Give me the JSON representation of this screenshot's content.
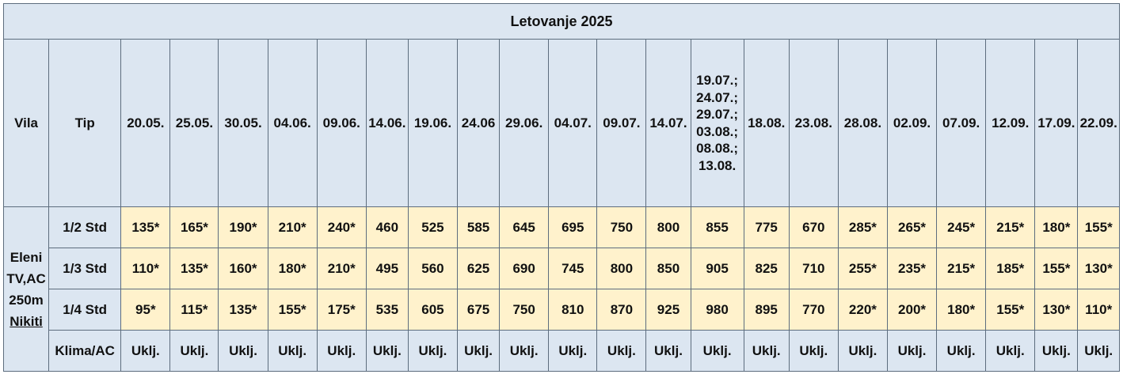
{
  "title": "Letovanje 2025",
  "headers": {
    "vila": "Vila",
    "tip": "Tip",
    "dates": [
      "20.05.",
      "25.05.",
      "30.05.",
      "04.06.",
      "09.06.",
      "14.06.",
      "19.06.",
      "24.06",
      "29.06.",
      "04.07.",
      "09.07.",
      "14.07."
    ],
    "multi_date": [
      "19.07.;",
      "24.07.;",
      "29.07.;",
      "03.08.;",
      "08.08.;",
      "13.08."
    ],
    "dates_after": [
      "18.08.",
      "23.08.",
      "28.08.",
      "02.09.",
      "07.09.",
      "12.09.",
      "17.09.",
      "22.09."
    ]
  },
  "vila": {
    "name": "Eleni",
    "features": "TV,AC",
    "distance": "250m",
    "location": "Nikiti"
  },
  "rows": [
    {
      "tip": "1/2 Std",
      "prices": [
        "135*",
        "165*",
        "190*",
        "210*",
        "240*",
        "460",
        "525",
        "585",
        "645",
        "695",
        "750",
        "800",
        "855",
        "775",
        "670",
        "285*",
        "265*",
        "245*",
        "215*",
        "180*",
        "155*"
      ]
    },
    {
      "tip": "1/3 Std",
      "prices": [
        "110*",
        "135*",
        "160*",
        "180*",
        "210*",
        "495",
        "560",
        "625",
        "690",
        "745",
        "800",
        "850",
        "905",
        "825",
        "710",
        "255*",
        "235*",
        "215*",
        "185*",
        "155*",
        "130*"
      ]
    },
    {
      "tip": "1/4 Std",
      "prices": [
        "95*",
        "115*",
        "135*",
        "155*",
        "175*",
        "535",
        "605",
        "675",
        "750",
        "810",
        "870",
        "925",
        "980",
        "895",
        "770",
        "220*",
        "200*",
        "180*",
        "155*",
        "130*",
        "110*"
      ]
    }
  ],
  "klima": {
    "tip": "Klima/AC",
    "value": "Uklj."
  },
  "colors": {
    "header_bg": "#dce6f1",
    "price_bg": "#fff2cc",
    "border": "#5d6d7e"
  }
}
